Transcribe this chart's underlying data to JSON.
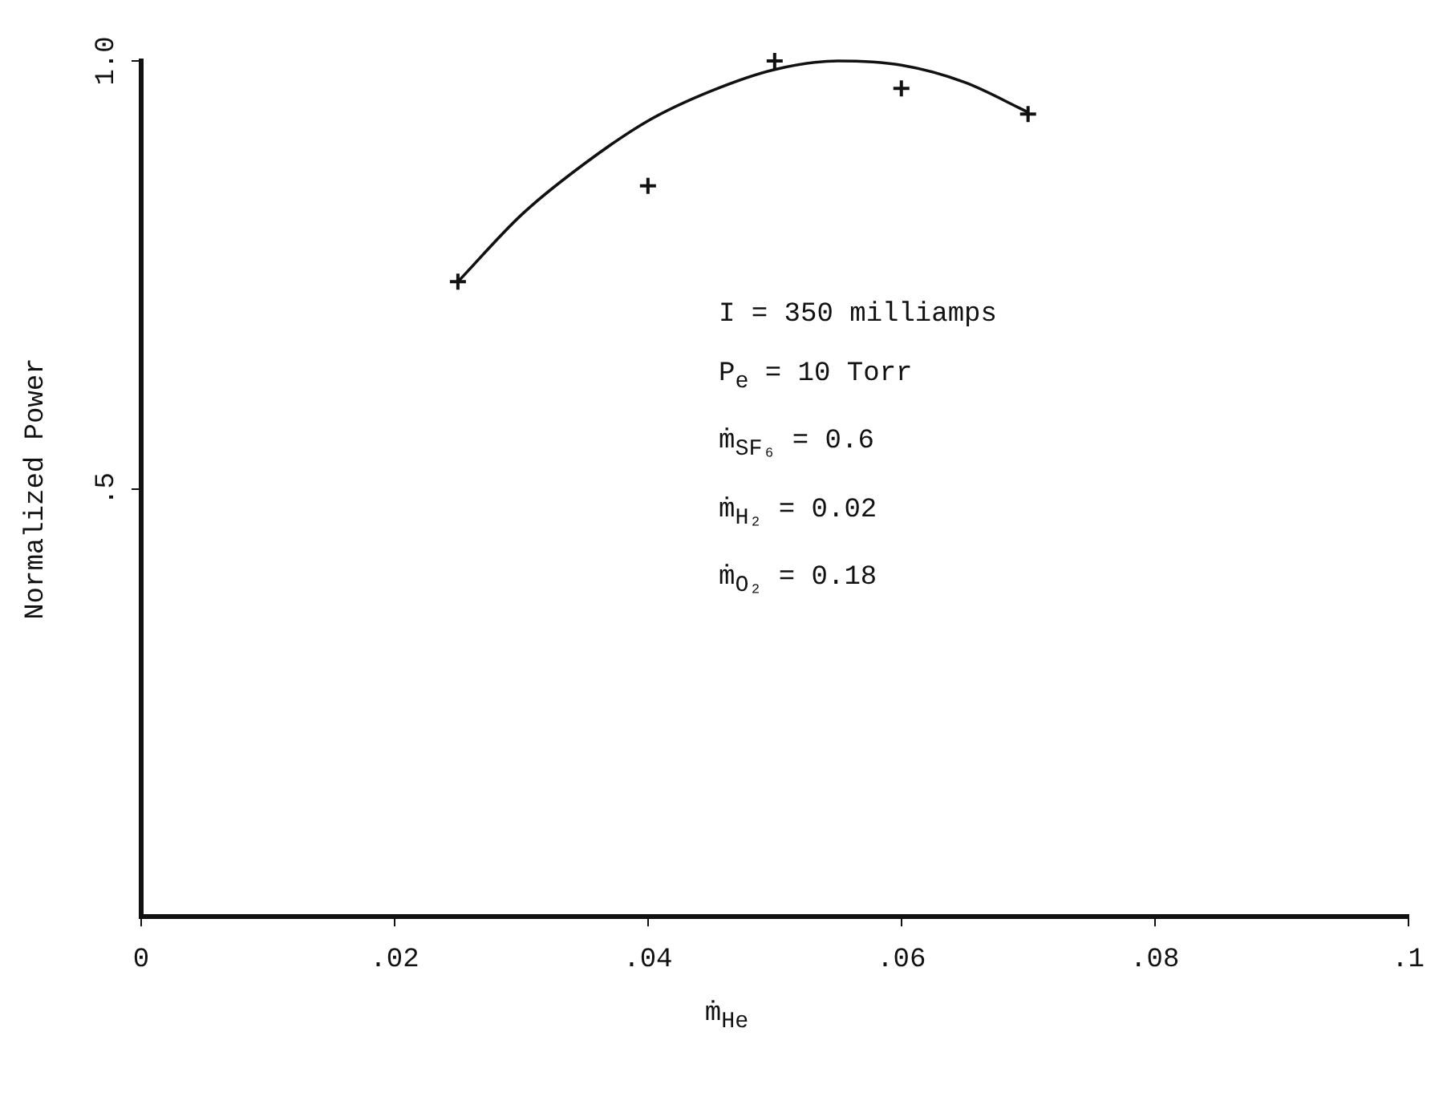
{
  "chart_data": {
    "type": "scatter",
    "xlabel": "ṁ$_{He}$",
    "ylabel": "Normalized Power",
    "xlim": [
      0,
      0.1
    ],
    "ylim": [
      0,
      1
    ],
    "xticks": [
      0,
      {
        "value": 0.02,
        "label": ".02"
      },
      {
        "value": 0.04,
        "label": ".04"
      },
      {
        "value": 0.06,
        "label": ".06"
      },
      {
        "value": 0.08,
        "label": ".08"
      },
      {
        "value": 0.1,
        "label": ".1"
      }
    ],
    "yticks": [
      {
        "value": 0.5,
        "label": ".5"
      },
      {
        "value": 1,
        "label": "1.0"
      }
    ],
    "grid": false,
    "legend": false,
    "series": [
      {
        "type": "scatter",
        "color": "#111111",
        "marker": "cross",
        "x": [
          0.025,
          0.04,
          0.05,
          0.06,
          0.07
        ],
        "values": [
          0.742,
          0.854,
          1.0,
          0.968,
          0.938
        ]
      },
      {
        "type": "line",
        "color": "#111111",
        "marker": "none",
        "x": [
          0.025,
          0.03,
          0.035,
          0.04,
          0.045,
          0.05,
          0.055,
          0.06,
          0.065,
          0.07
        ],
        "values": [
          0.742,
          0.82,
          0.88,
          0.93,
          0.965,
          0.99,
          1.0,
          0.995,
          0.975,
          0.94
        ]
      }
    ],
    "annotations": [
      "I = 350 milliamps",
      "P$_{e}$ = 10 Torr",
      "ṁ$_{SF₆}$ = 0.6",
      "ṁ$_{H₂}$ = 0.02",
      "ṁ$_{O₂}$ = 0.18"
    ]
  }
}
